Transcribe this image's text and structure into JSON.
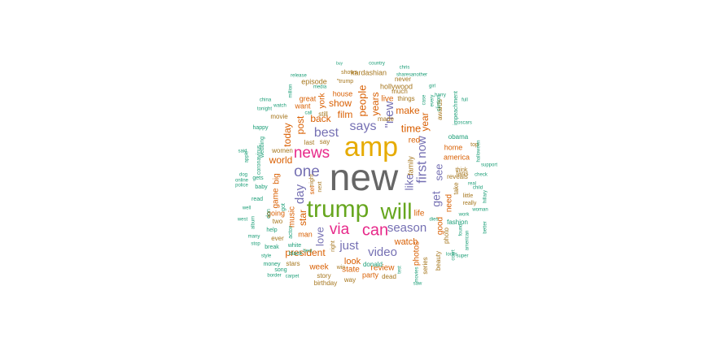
{
  "chart_data": {
    "type": "wordcloud",
    "colors": {
      "gray": "#666666",
      "gold": "#e6ab02",
      "green": "#66a61e",
      "pink": "#e7298a",
      "purple": "#7570b3",
      "orange": "#d95f02",
      "brown": "#a6761d",
      "teal": "#1b9e77"
    },
    "words": [
      {
        "text": "new",
        "color": "gray"
      },
      {
        "text": "amp",
        "color": "gold"
      },
      {
        "text": "trump",
        "color": "green"
      },
      {
        "text": "will",
        "color": "green"
      },
      {
        "text": "news",
        "color": "pink"
      },
      {
        "text": "via",
        "color": "pink"
      },
      {
        "text": "can",
        "color": "pink"
      },
      {
        "text": "one",
        "color": "purple"
      },
      {
        "text": "says",
        "color": "purple"
      },
      {
        "text": "first",
        "color": "purple"
      },
      {
        "text": "best",
        "color": "purple"
      },
      {
        "text": "now",
        "color": "purple"
      },
      {
        "text": "video",
        "color": "purple"
      },
      {
        "text": "season",
        "color": "purple"
      },
      {
        "text": "just",
        "color": "purple"
      },
      {
        "text": "\"new",
        "color": "purple"
      },
      {
        "text": "day",
        "color": "purple"
      },
      {
        "text": "love",
        "color": "purple"
      },
      {
        "text": "get",
        "color": "purple"
      },
      {
        "text": "like",
        "color": "purple"
      },
      {
        "text": "see",
        "color": "purple"
      },
      {
        "text": "people",
        "color": "orange"
      },
      {
        "text": "time",
        "color": "orange"
      },
      {
        "text": "make",
        "color": "orange"
      },
      {
        "text": "world",
        "color": "orange"
      },
      {
        "text": "back",
        "color": "orange"
      },
      {
        "text": "show",
        "color": "orange"
      },
      {
        "text": "film",
        "color": "orange"
      },
      {
        "text": "year",
        "color": "orange"
      },
      {
        "text": "years",
        "color": "orange"
      },
      {
        "text": "today",
        "color": "orange"
      },
      {
        "text": "post",
        "color": "orange"
      },
      {
        "text": "star",
        "color": "orange"
      },
      {
        "text": "president",
        "color": "orange"
      },
      {
        "text": "watch",
        "color": "orange"
      },
      {
        "text": "look",
        "color": "orange"
      },
      {
        "text": "state",
        "color": "orange"
      },
      {
        "text": "review",
        "color": "orange"
      },
      {
        "text": "week",
        "color": "orange"
      },
      {
        "text": "york",
        "color": "orange"
      },
      {
        "text": "music",
        "color": "orange"
      },
      {
        "text": "big",
        "color": "orange"
      },
      {
        "text": "game",
        "color": "orange"
      },
      {
        "text": "need",
        "color": "orange"
      },
      {
        "text": "good",
        "color": "orange"
      },
      {
        "text": "photos",
        "color": "orange"
      },
      {
        "text": "life",
        "color": "orange"
      },
      {
        "text": "red",
        "color": "orange"
      },
      {
        "text": "live",
        "color": "orange"
      },
      {
        "text": "home",
        "color": "orange"
      },
      {
        "text": "america",
        "color": "orange"
      },
      {
        "text": "party",
        "color": "orange"
      },
      {
        "text": "house",
        "color": "orange"
      },
      {
        "text": "want",
        "color": "orange"
      },
      {
        "text": "great",
        "color": "orange"
      },
      {
        "text": "man",
        "color": "orange"
      },
      {
        "text": "going",
        "color": "orange"
      },
      {
        "text": "set",
        "color": "orange"
      },
      {
        "text": "family",
        "color": "brown"
      },
      {
        "text": "take",
        "color": "brown"
      },
      {
        "text": "episode",
        "color": "brown"
      },
      {
        "text": "hollywood",
        "color": "brown"
      },
      {
        "text": "kardashian",
        "color": "brown"
      },
      {
        "text": "photo",
        "color": "brown"
      },
      {
        "text": "fans",
        "color": "brown"
      },
      {
        "text": "think",
        "color": "brown"
      },
      {
        "text": "reveals",
        "color": "brown"
      },
      {
        "text": "series",
        "color": "brown"
      },
      {
        "text": "dead",
        "color": "brown"
      },
      {
        "text": "awards",
        "color": "brown"
      },
      {
        "text": "made",
        "color": "brown"
      },
      {
        "text": "things",
        "color": "brown"
      },
      {
        "text": "stars",
        "color": "brown"
      },
      {
        "text": "story",
        "color": "brown"
      },
      {
        "text": "way",
        "color": "brown"
      },
      {
        "text": "top",
        "color": "brown"
      },
      {
        "text": "last",
        "color": "brown"
      },
      {
        "text": "still",
        "color": "brown"
      },
      {
        "text": "say",
        "color": "brown"
      },
      {
        "text": "never",
        "color": "brown"
      },
      {
        "text": "much",
        "color": "brown"
      },
      {
        "text": "two",
        "color": "brown"
      },
      {
        "text": "ever",
        "color": "brown"
      },
      {
        "text": "movie",
        "color": "brown"
      },
      {
        "text": "women",
        "color": "brown"
      },
      {
        "text": "beauty",
        "color": "brown"
      },
      {
        "text": "little",
        "color": "brown"
      },
      {
        "text": "really",
        "color": "brown"
      },
      {
        "text": "night",
        "color": "brown"
      },
      {
        "text": "next",
        "color": "brown"
      },
      {
        "text": "right",
        "color": "brown"
      },
      {
        "text": "birthday",
        "color": "brown"
      },
      {
        "text": "win",
        "color": "brown"
      },
      {
        "text": "\"trump",
        "color": "brown"
      },
      {
        "text": "shows",
        "color": "brown"
      },
      {
        "text": "obama",
        "color": "teal"
      },
      {
        "text": "fashion",
        "color": "teal"
      },
      {
        "text": "white",
        "color": "teal"
      },
      {
        "text": "black",
        "color": "teal"
      },
      {
        "text": "help",
        "color": "teal"
      },
      {
        "text": "actor",
        "color": "teal"
      },
      {
        "text": "donald",
        "color": "teal"
      },
      {
        "text": "happy",
        "color": "teal"
      },
      {
        "text": "wedding",
        "color": "teal"
      },
      {
        "text": "coronavirus",
        "color": "teal"
      },
      {
        "text": "gets",
        "color": "teal"
      },
      {
        "text": "baby",
        "color": "teal"
      },
      {
        "text": "read",
        "color": "teal"
      },
      {
        "text": "got",
        "color": "teal"
      },
      {
        "text": "don",
        "color": "teal"
      },
      {
        "text": "break",
        "color": "teal"
      },
      {
        "text": "song",
        "color": "teal"
      },
      {
        "text": "money",
        "color": "teal"
      },
      {
        "text": "impeachment",
        "color": "teal"
      },
      {
        "text": "clinton",
        "color": "teal"
      },
      {
        "text": "case",
        "color": "teal"
      },
      {
        "text": "every",
        "color": "teal"
      },
      {
        "text": "woman",
        "color": "teal"
      },
      {
        "text": "real",
        "color": "teal"
      },
      {
        "text": "work",
        "color": "teal"
      },
      {
        "text": "found",
        "color": "teal"
      },
      {
        "text": "american",
        "color": "teal"
      },
      {
        "text": "movies",
        "color": "teal"
      },
      {
        "text": "best",
        "color": "teal"
      },
      {
        "text": "watch",
        "color": "teal"
      },
      {
        "text": "carpet",
        "color": "teal"
      },
      {
        "text": "border",
        "color": "teal"
      },
      {
        "text": "style",
        "color": "teal"
      },
      {
        "text": "stop",
        "color": "teal"
      },
      {
        "text": "many",
        "color": "teal"
      },
      {
        "text": "west",
        "color": "teal"
      },
      {
        "text": "well",
        "color": "teal"
      },
      {
        "text": "police",
        "color": "teal"
      },
      {
        "text": "online",
        "color": "teal"
      },
      {
        "text": "apple",
        "color": "teal"
      },
      {
        "text": "dog",
        "color": "teal"
      },
      {
        "text": "said",
        "color": "teal"
      },
      {
        "text": "album",
        "color": "teal"
      },
      {
        "text": "china",
        "color": "teal"
      },
      {
        "text": "tonight",
        "color": "teal"
      },
      {
        "text": "release",
        "color": "teal"
      },
      {
        "text": "million",
        "color": "teal"
      },
      {
        "text": "media",
        "color": "teal"
      },
      {
        "text": "call",
        "color": "teal"
      },
      {
        "text": "another",
        "color": "teal"
      },
      {
        "text": "chris",
        "color": "teal"
      },
      {
        "text": "shares",
        "color": "teal"
      },
      {
        "text": "girl",
        "color": "teal"
      },
      {
        "text": "harry",
        "color": "teal"
      },
      {
        "text": "oscars",
        "color": "teal"
      },
      {
        "text": "halloween",
        "color": "teal"
      },
      {
        "text": "check",
        "color": "teal"
      },
      {
        "text": "child",
        "color": "teal"
      },
      {
        "text": "hillary",
        "color": "teal"
      },
      {
        "text": "support",
        "color": "teal"
      },
      {
        "text": "better",
        "color": "teal"
      },
      {
        "text": "court",
        "color": "teal"
      },
      {
        "text": "looks",
        "color": "teal"
      },
      {
        "text": "super",
        "color": "teal"
      },
      {
        "text": "dies",
        "color": "teal"
      },
      {
        "text": "buy",
        "color": "teal"
      },
      {
        "text": "country",
        "color": "teal"
      },
      {
        "text": "full",
        "color": "teal"
      },
      {
        "text": "test",
        "color": "teal"
      },
      {
        "text": "saw",
        "color": "teal"
      }
    ]
  }
}
